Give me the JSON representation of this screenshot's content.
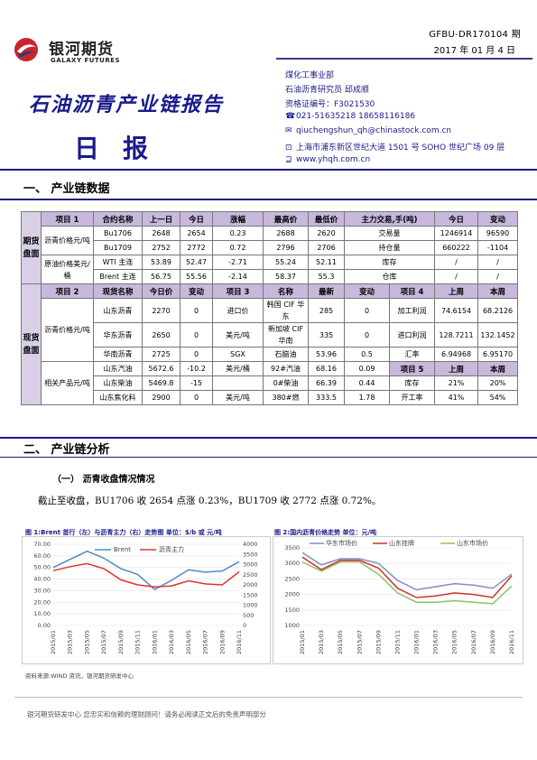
{
  "header": {
    "logo_cn": "银河期货",
    "logo_en": "GALAXY FUTURES",
    "doc_no": "GFBU-DR170104 期",
    "date": "2017 年 01 月 4 日",
    "title": "石油沥青产业链报告",
    "subtitle": "日报"
  },
  "author": {
    "dept": "煤化工事业部",
    "team": "石油沥青研究员 邱成顺",
    "license": "资格证编号：F3021530",
    "phone": "021-51635218  18658116186",
    "email": "qiuchengshun_qh@chinastock.com.cn",
    "address": "上海市浦东新区世纪大道 1501 号 SOHO 世纪广场 09 层",
    "website": "www.yhqh.com.cn"
  },
  "sections": {
    "s1": "一、  产业链数据",
    "s2": "二、  产业链分析",
    "s2_sub": "（一）  沥青收盘情况情况",
    "s2_para": "截止至收盘，BU1706 收 2654 点涨 0.23%，BU1709 收 2772 点涨 0.72%。"
  },
  "futures": {
    "side": "期货盘面",
    "headers": [
      "项目 1",
      "合约名称",
      "上一日",
      "今日",
      "涨幅",
      "最高价",
      "最低价",
      "主力交易,手(吨)",
      "今日",
      "变动"
    ],
    "unit1": "沥青价格元/吨",
    "unit2": "原油价格美元/桶",
    "rows": [
      [
        "Bu1706",
        "2648",
        "2654",
        "0.23",
        "2688",
        "2620",
        "交易量",
        "1246914",
        "96590"
      ],
      [
        "Bu1709",
        "2752",
        "2772",
        "0.72",
        "2796",
        "2706",
        "持仓量",
        "660222",
        "-1104"
      ],
      [
        "WTI 主连",
        "53.89",
        "52.47",
        "-2.71",
        "55.24",
        "52.11",
        "库存",
        "/",
        "/"
      ],
      [
        "Brent 主连",
        "56.75",
        "55.56",
        "-2.14",
        "58.37",
        "55.3",
        "仓库",
        "/",
        "/"
      ]
    ]
  },
  "spot": {
    "side": "现货盘面",
    "headers": [
      "项目 2",
      "现货名称",
      "今日价",
      "变动",
      "项目 3",
      "名称",
      "最新",
      "变动",
      "项目 4",
      "上周",
      "本周"
    ],
    "unit_asphalt": "沥青价格元/吨",
    "unit_related": "相关产品元/吨",
    "import_price": "进口价",
    "usd_ton": "美元/吨",
    "sgx": "SGX",
    "sgx_unit": "美元/桶",
    "usd_ton2": "美元/吨",
    "item5": "项目 5",
    "last_week": "上周",
    "this_week": "本周",
    "asphalt_rows": [
      [
        "山东沥青",
        "2270",
        "0"
      ],
      [
        "华东沥青",
        "2650",
        "0"
      ],
      [
        "华南沥青",
        "2725",
        "0"
      ]
    ],
    "related_rows": [
      [
        "山东汽油",
        "5672.6",
        "-10.2"
      ],
      [
        "山东柴油",
        "5469.8",
        "-15"
      ],
      [
        "山东焦化料",
        "2900",
        "0"
      ]
    ],
    "intl_rows": [
      [
        "韩国 CIF 华东",
        "285",
        "0"
      ],
      [
        "新加坡 CIF 华南",
        "335",
        "0"
      ],
      [
        "石脑油",
        "53.96",
        "0.5"
      ],
      [
        "92#汽油",
        "68.16",
        "0.09"
      ],
      [
        "0#柴油",
        "66.39",
        "0.44"
      ],
      [
        "380#燃",
        "333.5",
        "1.78"
      ]
    ],
    "item4_rows": [
      [
        "加工利润",
        "74.6154",
        "68.2126"
      ],
      [
        "进口利润",
        "128.7211",
        "132.1452"
      ],
      [
        "汇率",
        "6.94968",
        "6.95170"
      ]
    ],
    "item5_rows": [
      [
        "库存",
        "21%",
        "20%"
      ],
      [
        "开工率",
        "41%",
        "54%"
      ]
    ]
  },
  "chart_data": [
    {
      "type": "line",
      "title": "图 1:Brent 首行（左）与沥青主力（右）走势图   单位：$/b 或 元/吨",
      "x": [
        "2015/01",
        "2015/03",
        "2015/05",
        "2015/07",
        "2015/09",
        "2015/11",
        "2016/01",
        "2016/03",
        "2016/05",
        "2016/07",
        "2016/09",
        "2016/11"
      ],
      "series": [
        {
          "name": "Brent",
          "axis": "left",
          "color": "#4a8cc8",
          "values": [
            50,
            57,
            64,
            58,
            49,
            44,
            31,
            39,
            48,
            46,
            47,
            55
          ]
        },
        {
          "name": "沥青主力",
          "axis": "right",
          "color": "#e03030",
          "values": [
            2700,
            2900,
            3050,
            2800,
            2250,
            2000,
            1900,
            1950,
            2200,
            2050,
            2000,
            2650
          ]
        }
      ],
      "yleft": [
        0,
        70
      ],
      "yright": [
        0,
        4000
      ],
      "yleft_ticks": [
        "0.00",
        "10.00",
        "20.00",
        "30.00",
        "40.00",
        "50.00",
        "60.00",
        "70.00"
      ],
      "yright_ticks": [
        "0",
        "500",
        "1000",
        "1500",
        "2000",
        "2500",
        "3000",
        "3500",
        "4000"
      ]
    },
    {
      "type": "line",
      "title": "图 2:国内沥青价格走势   单位：元/吨",
      "x": [
        "2015/01",
        "2015/03",
        "2015/05",
        "2015/07",
        "2015/09",
        "2015/11",
        "2016/01",
        "2016/03",
        "2016/05",
        "2016/07",
        "2016/09",
        "2016/11"
      ],
      "series": [
        {
          "name": "华东市场价",
          "color": "#8090c0",
          "values": [
            3350,
            2950,
            3150,
            3150,
            3000,
            2450,
            2150,
            2250,
            2350,
            2300,
            2200,
            2650
          ]
        },
        {
          "name": "山东挂牌",
          "color": "#d03030",
          "values": [
            3200,
            2800,
            3100,
            3100,
            2850,
            2200,
            1900,
            1950,
            2050,
            2000,
            1900,
            2600
          ]
        },
        {
          "name": "山东市场价",
          "color": "#90c060",
          "values": [
            3050,
            2750,
            3050,
            3050,
            2650,
            2050,
            1750,
            1750,
            1800,
            1750,
            1700,
            2270
          ]
        }
      ],
      "ylim": [
        1000,
        3500
      ],
      "yticks": [
        "1000",
        "1500",
        "2000",
        "2500",
        "3000",
        "3500"
      ]
    }
  ],
  "source": "资料来源:WIND 资讯，银河期货研发中心",
  "footer": "银河期货研发中心  您忠实和信赖的理财顾问！请务必阅读正文后的免责声明部分"
}
